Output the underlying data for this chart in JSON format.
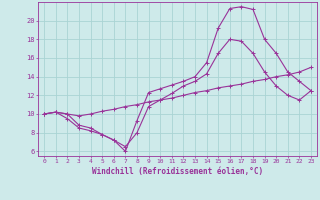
{
  "background_color": "#ceeaea",
  "grid_color": "#aad4d4",
  "line_color": "#993399",
  "xlabel": "Windchill (Refroidissement éolien,°C)",
  "xlabel_fontsize": 5.5,
  "xtick_fontsize": 4.5,
  "ytick_fontsize": 5.0,
  "xlim": [
    -0.5,
    23.5
  ],
  "ylim": [
    5.5,
    22.0
  ],
  "yticks": [
    6,
    8,
    10,
    12,
    14,
    16,
    18,
    20
  ],
  "xticks": [
    0,
    1,
    2,
    3,
    4,
    5,
    6,
    7,
    8,
    9,
    10,
    11,
    12,
    13,
    14,
    15,
    16,
    17,
    18,
    19,
    20,
    21,
    22,
    23
  ],
  "line1_x": [
    0,
    1,
    2,
    3,
    4,
    5,
    6,
    7,
    8,
    9,
    10,
    11,
    12,
    13,
    14,
    15,
    16,
    17,
    18,
    19,
    20,
    21,
    22,
    23
  ],
  "line1_y": [
    10,
    10.2,
    10.0,
    8.8,
    8.5,
    7.8,
    7.2,
    6.0,
    9.3,
    12.3,
    12.7,
    13.1,
    13.5,
    14.0,
    15.5,
    19.2,
    21.3,
    21.5,
    21.2,
    18.0,
    16.5,
    14.5,
    13.5,
    12.5
  ],
  "line2_x": [
    0,
    1,
    2,
    3,
    4,
    5,
    6,
    7,
    8,
    9,
    10,
    11,
    12,
    13,
    14,
    15,
    16,
    17,
    18,
    19,
    20,
    21,
    22,
    23
  ],
  "line2_y": [
    10,
    10.2,
    10.0,
    9.8,
    10.0,
    10.3,
    10.5,
    10.8,
    11.0,
    11.3,
    11.5,
    11.7,
    12.0,
    12.3,
    12.5,
    12.8,
    13.0,
    13.2,
    13.5,
    13.7,
    14.0,
    14.2,
    14.5,
    15.0
  ],
  "line3_x": [
    0,
    1,
    2,
    3,
    4,
    5,
    6,
    7,
    8,
    9,
    10,
    11,
    12,
    13,
    14,
    15,
    16,
    17,
    18,
    19,
    20,
    21,
    22,
    23
  ],
  "line3_y": [
    10,
    10.2,
    9.5,
    8.5,
    8.2,
    7.8,
    7.2,
    6.5,
    8.0,
    10.8,
    11.5,
    12.2,
    13.0,
    13.5,
    14.3,
    16.5,
    18.0,
    17.8,
    16.5,
    14.5,
    13.0,
    12.0,
    11.5,
    12.5
  ]
}
